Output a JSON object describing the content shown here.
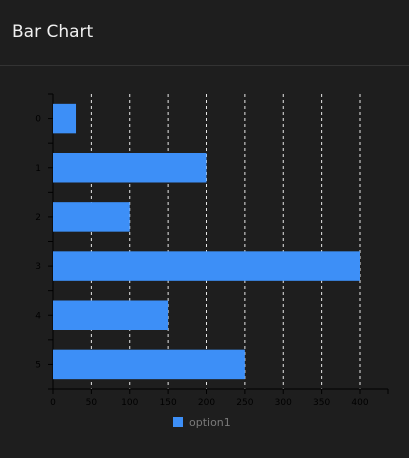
{
  "panel": {
    "title": "Bar Chart"
  },
  "colors": {
    "background": "#1e1e1e",
    "bar": "#3d8ff7",
    "grid": "#e8e8e8",
    "axis": "#000000",
    "text": "#f0f0f0",
    "tick_text": "#000000",
    "legend_text": "#7a7a7a"
  },
  "chart_data": {
    "type": "bar",
    "orientation": "horizontal",
    "categories": [
      "0",
      "1",
      "2",
      "3",
      "4",
      "5"
    ],
    "series": [
      {
        "name": "option1",
        "values": [
          30,
          200,
          100,
          400,
          150,
          250
        ]
      }
    ],
    "xlim": [
      0,
      440
    ],
    "xticks": [
      0,
      50,
      100,
      150,
      200,
      250,
      300,
      350,
      400
    ],
    "grid": "vertical dashed",
    "legend": "bottom-left"
  }
}
